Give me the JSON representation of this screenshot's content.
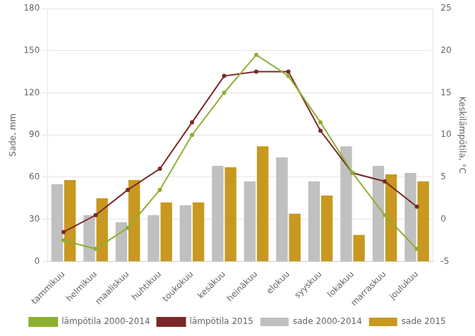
{
  "chart_data": {
    "type": "bar",
    "categories": [
      "tammikuu",
      "helmikuu",
      "maaliskuu",
      "huhtikuu",
      "toukokuu",
      "kesäkuu",
      "heinäkuu",
      "elokuu",
      "syyskuu",
      "lokakuu",
      "marraskuu",
      "joulukuu"
    ],
    "series": [
      {
        "name": "sade 2000-2014",
        "type": "bar",
        "color": "#c0c0c0",
        "values": [
          55,
          33,
          28,
          33,
          40,
          68,
          57,
          74,
          57,
          82,
          68,
          63
        ]
      },
      {
        "name": "sade 2015",
        "type": "bar",
        "color": "#c89820",
        "values": [
          58,
          45,
          58,
          42,
          42,
          67,
          82,
          34,
          47,
          19,
          62,
          57
        ]
      },
      {
        "name": "lämpötila 2000-2014",
        "type": "line",
        "color": "#8db030",
        "axis": "y2",
        "values": [
          -2.5,
          -3.5,
          -1.0,
          3.5,
          10.0,
          15.0,
          19.5,
          17.0,
          11.5,
          5.5,
          0.5,
          -3.5
        ]
      },
      {
        "name": "lämpötila 2015",
        "type": "line",
        "color": "#7b2828",
        "axis": "y2",
        "values": [
          -1.5,
          0.5,
          3.5,
          6.0,
          11.5,
          17.0,
          17.5,
          17.5,
          10.5,
          5.5,
          4.5,
          1.5
        ]
      }
    ],
    "ylabel": "Sade, mm",
    "y2label": "Keskilämpötila, °C",
    "ylim": [
      0,
      180
    ],
    "yticks": [
      0,
      30,
      60,
      90,
      120,
      150,
      180
    ],
    "y2lim": [
      -5,
      25
    ],
    "y2ticks": [
      -5,
      0,
      5,
      10,
      15,
      20,
      25
    ],
    "grid": true,
    "legend": "bottom"
  }
}
